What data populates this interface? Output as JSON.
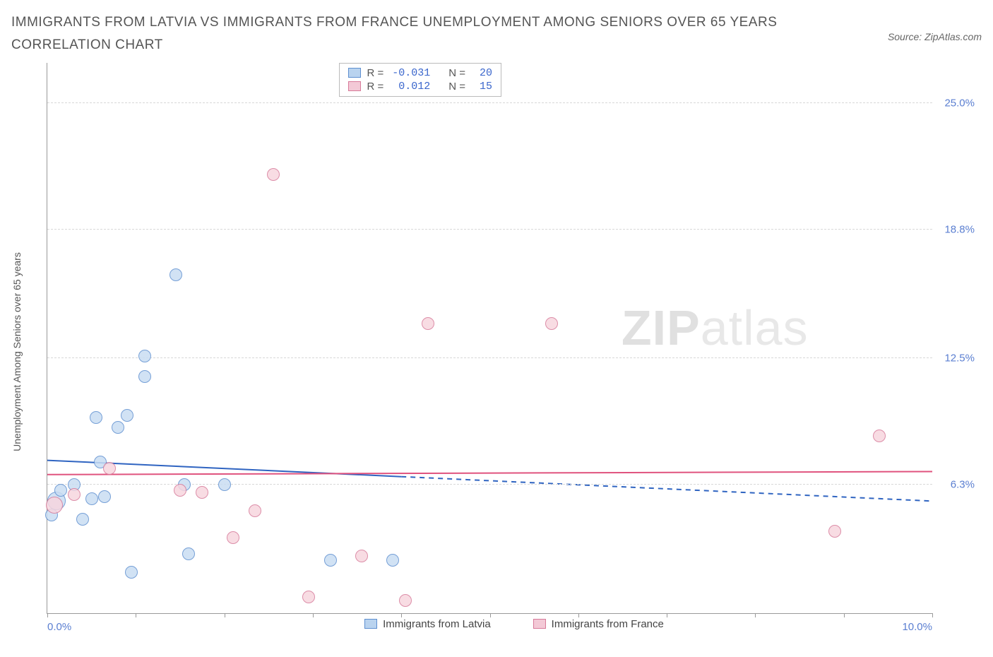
{
  "title": "IMMIGRANTS FROM LATVIA VS IMMIGRANTS FROM FRANCE UNEMPLOYMENT AMONG SENIORS OVER 65 YEARS CORRELATION CHART",
  "source_label": "Source: ZipAtlas.com",
  "ylabel": "Unemployment Among Seniors over 65 years",
  "watermark_bold": "ZIP",
  "watermark_light": "atlas",
  "chart": {
    "type": "scatter",
    "background_color": "#ffffff",
    "grid_color": "#d8d8d8",
    "axis_color": "#999999",
    "label_color": "#555555",
    "tick_label_color": "#5b7fd1",
    "xlim": [
      0.0,
      10.0
    ],
    "ylim": [
      0.0,
      27.0
    ],
    "x_ticks": [
      0.0,
      1.0,
      2.0,
      3.0,
      4.0,
      5.0,
      6.0,
      7.0,
      8.0,
      9.0,
      10.0
    ],
    "x_tick_labels": {
      "0": "0.0%",
      "10": "10.0%"
    },
    "y_gridlines": [
      6.3,
      12.5,
      18.8,
      25.0
    ],
    "y_tick_labels": [
      "6.3%",
      "12.5%",
      "18.8%",
      "25.0%"
    ],
    "marker_radius": 9,
    "marker_radius_large": 13,
    "marker_stroke_width": 1.2,
    "series": [
      {
        "name": "Immigrants from Latvia",
        "fill": "#c9ddf3",
        "stroke": "#5e8fd0",
        "swatch_fill": "#b9d3ef",
        "swatch_stroke": "#5e8fd0",
        "R": "-0.031",
        "N": "20",
        "trend": {
          "x1": 0.0,
          "y1": 7.5,
          "x2": 4.0,
          "y2": 6.7,
          "dash_from_x": 4.0,
          "dash_to_x": 10.0,
          "dash_y2": 5.5,
          "color": "#2f64c1",
          "width": 2
        },
        "points": [
          {
            "x": 0.1,
            "y": 5.5,
            "r": 13
          },
          {
            "x": 0.15,
            "y": 6.0,
            "r": 9
          },
          {
            "x": 0.05,
            "y": 4.8,
            "r": 9
          },
          {
            "x": 0.3,
            "y": 6.3,
            "r": 9
          },
          {
            "x": 0.4,
            "y": 4.6,
            "r": 9
          },
          {
            "x": 0.5,
            "y": 5.6,
            "r": 9
          },
          {
            "x": 0.55,
            "y": 9.6,
            "r": 9
          },
          {
            "x": 0.6,
            "y": 7.4,
            "r": 9
          },
          {
            "x": 0.65,
            "y": 5.7,
            "r": 9
          },
          {
            "x": 0.8,
            "y": 9.1,
            "r": 9
          },
          {
            "x": 0.9,
            "y": 9.7,
            "r": 9
          },
          {
            "x": 0.95,
            "y": 2.0,
            "r": 9
          },
          {
            "x": 1.1,
            "y": 12.6,
            "r": 9
          },
          {
            "x": 1.1,
            "y": 11.6,
            "r": 9
          },
          {
            "x": 1.45,
            "y": 16.6,
            "r": 9
          },
          {
            "x": 1.55,
            "y": 6.3,
            "r": 9
          },
          {
            "x": 1.6,
            "y": 2.9,
            "r": 9
          },
          {
            "x": 2.0,
            "y": 6.3,
            "r": 9
          },
          {
            "x": 3.2,
            "y": 2.6,
            "r": 9
          },
          {
            "x": 3.9,
            "y": 2.6,
            "r": 9
          }
        ]
      },
      {
        "name": "Immigrants from France",
        "fill": "#f7d6df",
        "stroke": "#d77a99",
        "swatch_fill": "#f3c9d6",
        "swatch_stroke": "#d77a99",
        "R": "0.012",
        "N": "15",
        "trend": {
          "x1": 0.0,
          "y1": 6.8,
          "x2": 10.0,
          "y2": 6.95,
          "color": "#e0537e",
          "width": 2
        },
        "points": [
          {
            "x": 0.08,
            "y": 5.3,
            "r": 12
          },
          {
            "x": 0.3,
            "y": 5.8,
            "r": 9
          },
          {
            "x": 0.7,
            "y": 7.1,
            "r": 9
          },
          {
            "x": 1.5,
            "y": 6.0,
            "r": 9
          },
          {
            "x": 1.75,
            "y": 5.9,
            "r": 9
          },
          {
            "x": 2.1,
            "y": 3.7,
            "r": 9
          },
          {
            "x": 2.35,
            "y": 5.0,
            "r": 9
          },
          {
            "x": 2.55,
            "y": 21.5,
            "r": 9
          },
          {
            "x": 2.95,
            "y": 0.8,
            "r": 9
          },
          {
            "x": 3.55,
            "y": 2.8,
            "r": 9
          },
          {
            "x": 4.05,
            "y": 0.6,
            "r": 9
          },
          {
            "x": 4.3,
            "y": 14.2,
            "r": 9
          },
          {
            "x": 5.7,
            "y": 14.2,
            "r": 9
          },
          {
            "x": 8.9,
            "y": 4.0,
            "r": 9
          },
          {
            "x": 9.4,
            "y": 8.7,
            "r": 9
          }
        ]
      }
    ]
  },
  "stats_legend_labels": {
    "R": "R =",
    "N": "N ="
  }
}
